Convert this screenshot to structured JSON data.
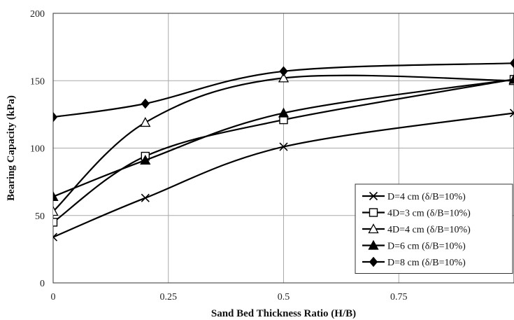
{
  "chart_data": {
    "type": "line",
    "title": "",
    "xlabel": "Sand Bed Thickness Ratio (H/B)",
    "ylabel": "Bearing Capacity (kPa)",
    "xlim": [
      0,
      1
    ],
    "ylim": [
      0,
      200
    ],
    "x_ticks": [
      "0",
      "0.25",
      "0.5",
      "0.75"
    ],
    "x_tick_values": [
      0,
      0.25,
      0.5,
      0.75
    ],
    "y_ticks": [
      "0",
      "50",
      "100",
      "150",
      "200"
    ],
    "y_tick_values": [
      0,
      50,
      100,
      150,
      200
    ],
    "grid": true,
    "legend_position": "bottom-right",
    "series": [
      {
        "name": "D=4 cm (δ/B=10%)",
        "marker": "x",
        "x": [
          0,
          0.2,
          0.5,
          1.0
        ],
        "values": [
          34,
          63,
          101,
          126
        ]
      },
      {
        "name": "4D=3 cm (δ/B=10%)",
        "marker": "square-open",
        "x": [
          0,
          0.2,
          0.5,
          1.0
        ],
        "values": [
          45,
          94,
          121,
          151
        ]
      },
      {
        "name": "4D=4 cm (δ/B=10%)",
        "marker": "triangle-open",
        "x": [
          0,
          0.2,
          0.5,
          1.0
        ],
        "values": [
          53,
          119,
          152,
          150
        ]
      },
      {
        "name": "D=6 cm (δ/B=10%)",
        "marker": "triangle-filled",
        "x": [
          0,
          0.2,
          0.5,
          1.0
        ],
        "values": [
          64,
          91,
          126,
          151
        ]
      },
      {
        "name": "D=8 cm (δ/B=10%)",
        "marker": "diamond-filled",
        "x": [
          0,
          0.2,
          0.5,
          1.0
        ],
        "values": [
          123,
          133,
          157,
          163
        ]
      }
    ]
  }
}
